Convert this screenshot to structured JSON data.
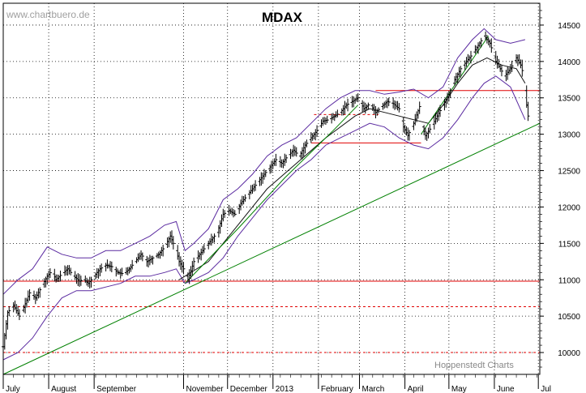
{
  "chart_data": {
    "type": "ohlc",
    "title": "MDAX",
    "watermark": "www.chartbuero.de",
    "credit": "Hoppenstedt Charts",
    "ylim": [
      9700,
      14800
    ],
    "y_ticks": [
      10000,
      10500,
      11000,
      11500,
      12000,
      12500,
      13000,
      13500,
      14000,
      14500
    ],
    "y_tick_labels": [
      "10000",
      "10500",
      "11000",
      "11500",
      "12000",
      "12500",
      "13000",
      "13500",
      "14000",
      "14500"
    ],
    "x_months": [
      {
        "label": "July",
        "day": 0
      },
      {
        "label": "August",
        "day": 31
      },
      {
        "label": "September",
        "day": 62
      },
      {
        "label": "November",
        "day": 123
      },
      {
        "label": "December",
        "day": 153
      },
      {
        "label": "2013",
        "day": 184
      },
      {
        "label": "February",
        "day": 215
      },
      {
        "label": "March",
        "day": 243
      },
      {
        "label": "April",
        "day": 274
      },
      {
        "label": "May",
        "day": 304
      },
      {
        "label": "June",
        "day": 335
      },
      {
        "label": "Jul",
        "day": 365
      }
    ],
    "close_series": [
      [
        0,
        10080
      ],
      [
        3,
        10550
      ],
      [
        7,
        10650
      ],
      [
        11,
        10500
      ],
      [
        14,
        10620
      ],
      [
        18,
        10820
      ],
      [
        22,
        10750
      ],
      [
        26,
        10900
      ],
      [
        30,
        11050
      ],
      [
        33,
        11120
      ],
      [
        36,
        11000
      ],
      [
        40,
        11080
      ],
      [
        44,
        11150
      ],
      [
        48,
        11050
      ],
      [
        52,
        10980
      ],
      [
        55,
        11000
      ],
      [
        58,
        10950
      ],
      [
        62,
        11050
      ],
      [
        66,
        11150
      ],
      [
        70,
        11200
      ],
      [
        74,
        11180
      ],
      [
        78,
        11100
      ],
      [
        82,
        11080
      ],
      [
        86,
        11150
      ],
      [
        90,
        11250
      ],
      [
        94,
        11350
      ],
      [
        98,
        11250
      ],
      [
        102,
        11300
      ],
      [
        106,
        11350
      ],
      [
        110,
        11450
      ],
      [
        114,
        11600
      ],
      [
        118,
        11400
      ],
      [
        120,
        11250
      ],
      [
        123,
        11150
      ],
      [
        126,
        11000
      ],
      [
        130,
        11250
      ],
      [
        134,
        11350
      ],
      [
        138,
        11450
      ],
      [
        142,
        11550
      ],
      [
        146,
        11650
      ],
      [
        150,
        11900
      ],
      [
        154,
        11950
      ],
      [
        158,
        11900
      ],
      [
        162,
        12050
      ],
      [
        166,
        12150
      ],
      [
        170,
        12250
      ],
      [
        174,
        12350
      ],
      [
        178,
        12450
      ],
      [
        182,
        12550
      ],
      [
        186,
        12650
      ],
      [
        190,
        12600
      ],
      [
        194,
        12700
      ],
      [
        198,
        12780
      ],
      [
        202,
        12700
      ],
      [
        206,
        12850
      ],
      [
        210,
        12950
      ],
      [
        214,
        13050
      ],
      [
        218,
        13180
      ],
      [
        222,
        13200
      ],
      [
        226,
        13250
      ],
      [
        230,
        13300
      ],
      [
        234,
        13400
      ],
      [
        238,
        13450
      ],
      [
        242,
        13500
      ],
      [
        246,
        13350
      ],
      [
        250,
        13420
      ],
      [
        254,
        13300
      ],
      [
        258,
        13380
      ],
      [
        262,
        13450
      ],
      [
        266,
        13420
      ],
      [
        270,
        13350
      ],
      [
        273,
        13100
      ],
      [
        276,
        12980
      ],
      [
        280,
        13150
      ],
      [
        284,
        13380
      ],
      [
        286,
        13100
      ],
      [
        288,
        12980
      ],
      [
        292,
        13100
      ],
      [
        296,
        13250
      ],
      [
        300,
        13400
      ],
      [
        304,
        13550
      ],
      [
        308,
        13750
      ],
      [
        312,
        13900
      ],
      [
        316,
        14000
      ],
      [
        320,
        14100
      ],
      [
        324,
        14220
      ],
      [
        328,
        14350
      ],
      [
        332,
        14250
      ],
      [
        336,
        14000
      ],
      [
        339,
        13900
      ],
      [
        342,
        13800
      ],
      [
        346,
        13900
      ],
      [
        350,
        14050
      ],
      [
        353,
        13950
      ],
      [
        355,
        13800
      ],
      [
        357,
        13400
      ],
      [
        358,
        13250
      ]
    ],
    "upper_band": [
      [
        0,
        10800
      ],
      [
        10,
        11000
      ],
      [
        20,
        11150
      ],
      [
        30,
        11450
      ],
      [
        40,
        11350
      ],
      [
        50,
        11300
      ],
      [
        60,
        11300
      ],
      [
        70,
        11400
      ],
      [
        80,
        11400
      ],
      [
        90,
        11500
      ],
      [
        100,
        11600
      ],
      [
        110,
        11750
      ],
      [
        118,
        11800
      ],
      [
        124,
        11400
      ],
      [
        130,
        11500
      ],
      [
        140,
        11700
      ],
      [
        150,
        12100
      ],
      [
        160,
        12250
      ],
      [
        170,
        12450
      ],
      [
        180,
        12700
      ],
      [
        190,
        12850
      ],
      [
        200,
        12950
      ],
      [
        210,
        13150
      ],
      [
        220,
        13350
      ],
      [
        230,
        13500
      ],
      [
        240,
        13600
      ],
      [
        250,
        13600
      ],
      [
        260,
        13550
      ],
      [
        270,
        13580
      ],
      [
        280,
        13620
      ],
      [
        290,
        13500
      ],
      [
        300,
        13650
      ],
      [
        310,
        14050
      ],
      [
        320,
        14300
      ],
      [
        328,
        14450
      ],
      [
        336,
        14300
      ],
      [
        346,
        14250
      ],
      [
        356,
        14300
      ]
    ],
    "lower_band": [
      [
        0,
        9900
      ],
      [
        10,
        10000
      ],
      [
        20,
        10200
      ],
      [
        30,
        10500
      ],
      [
        40,
        10750
      ],
      [
        50,
        10850
      ],
      [
        60,
        10850
      ],
      [
        70,
        10900
      ],
      [
        80,
        10950
      ],
      [
        90,
        11050
      ],
      [
        100,
        11050
      ],
      [
        110,
        11100
      ],
      [
        118,
        11150
      ],
      [
        124,
        10950
      ],
      [
        130,
        11000
      ],
      [
        140,
        11100
      ],
      [
        150,
        11300
      ],
      [
        160,
        11600
      ],
      [
        170,
        11850
      ],
      [
        180,
        12100
      ],
      [
        190,
        12300
      ],
      [
        200,
        12500
      ],
      [
        210,
        12650
      ],
      [
        220,
        12850
      ],
      [
        230,
        12950
      ],
      [
        240,
        13050
      ],
      [
        250,
        13150
      ],
      [
        260,
        13100
      ],
      [
        270,
        12950
      ],
      [
        280,
        12850
      ],
      [
        290,
        12800
      ],
      [
        300,
        12950
      ],
      [
        310,
        13200
      ],
      [
        320,
        13500
      ],
      [
        328,
        13700
      ],
      [
        336,
        13800
      ],
      [
        346,
        13650
      ],
      [
        356,
        13200
      ]
    ],
    "middle_line": [
      [
        120,
        11000
      ],
      [
        140,
        11250
      ],
      [
        160,
        11750
      ],
      [
        180,
        12250
      ],
      [
        200,
        12600
      ],
      [
        220,
        12950
      ],
      [
        240,
        13250
      ],
      [
        250,
        13350
      ],
      [
        260,
        13300
      ],
      [
        270,
        13250
      ],
      [
        280,
        13200
      ],
      [
        290,
        13150
      ],
      [
        300,
        13400
      ],
      [
        310,
        13700
      ],
      [
        320,
        13950
      ],
      [
        330,
        14050
      ],
      [
        340,
        13950
      ],
      [
        350,
        13900
      ],
      [
        356,
        13700
      ]
    ],
    "trendlines": [
      {
        "color": "#008000",
        "points": [
          [
            0,
            9700
          ],
          [
            366,
            13150
          ]
        ]
      },
      {
        "color": "#008000",
        "points": [
          [
            124,
            10950
          ],
          [
            160,
            11700
          ],
          [
            192,
            12400
          ],
          [
            225,
            13050
          ],
          [
            242,
            13400
          ]
        ]
      },
      {
        "color": "#008000",
        "points": [
          [
            285,
            13000
          ],
          [
            331,
            14350
          ]
        ]
      }
    ],
    "resistance_lines": [
      {
        "color": "#e00000",
        "style": "solid",
        "y": 10980,
        "from_day": 0,
        "to_day": 366
      },
      {
        "color": "#e00000",
        "style": "dashed",
        "y": 10630,
        "from_day": 0,
        "to_day": 366
      },
      {
        "color": "#e00000",
        "style": "dashed",
        "y": 10000,
        "from_day": 0,
        "to_day": 366
      },
      {
        "color": "#e00000",
        "style": "solid",
        "y": 13600,
        "from_day": 254,
        "to_day": 366
      },
      {
        "color": "#e00000",
        "style": "solid",
        "y": 12880,
        "from_day": 210,
        "to_day": 285
      },
      {
        "color": "#e00000",
        "style": "dashed",
        "y": 13270,
        "from_day": 212,
        "to_day": 256
      }
    ]
  }
}
